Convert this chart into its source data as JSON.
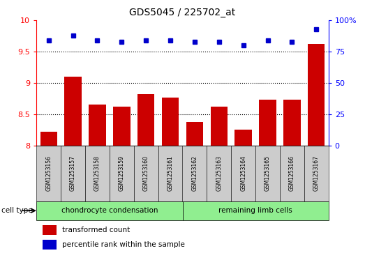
{
  "title": "GDS5045 / 225702_at",
  "samples": [
    "GSM1253156",
    "GSM1253157",
    "GSM1253158",
    "GSM1253159",
    "GSM1253160",
    "GSM1253161",
    "GSM1253162",
    "GSM1253163",
    "GSM1253164",
    "GSM1253165",
    "GSM1253166",
    "GSM1253167"
  ],
  "bar_values": [
    8.22,
    9.1,
    8.65,
    8.62,
    8.82,
    8.76,
    8.38,
    8.62,
    8.25,
    8.73,
    8.73,
    9.62
  ],
  "dot_values": [
    84,
    88,
    84,
    83,
    84,
    84,
    83,
    83,
    80,
    84,
    83,
    93
  ],
  "ylim_left": [
    8.0,
    10.0
  ],
  "ylim_right": [
    0,
    100
  ],
  "yticks_left": [
    8.0,
    8.5,
    9.0,
    9.5,
    10.0
  ],
  "yticks_right": [
    0,
    25,
    50,
    75,
    100
  ],
  "bar_color": "#cc0000",
  "dot_color": "#0000cc",
  "bg_color": "#ffffff",
  "cell_type_groups": [
    {
      "label": "chondrocyte condensation",
      "start": 0,
      "end": 5,
      "color": "#90ee90"
    },
    {
      "label": "remaining limb cells",
      "start": 6,
      "end": 11,
      "color": "#90ee90"
    }
  ],
  "cell_type_label": "cell type",
  "legend_bar_label": "transformed count",
  "legend_dot_label": "percentile rank within the sample",
  "tick_bg_color": "#cccccc",
  "n_samples": 12
}
